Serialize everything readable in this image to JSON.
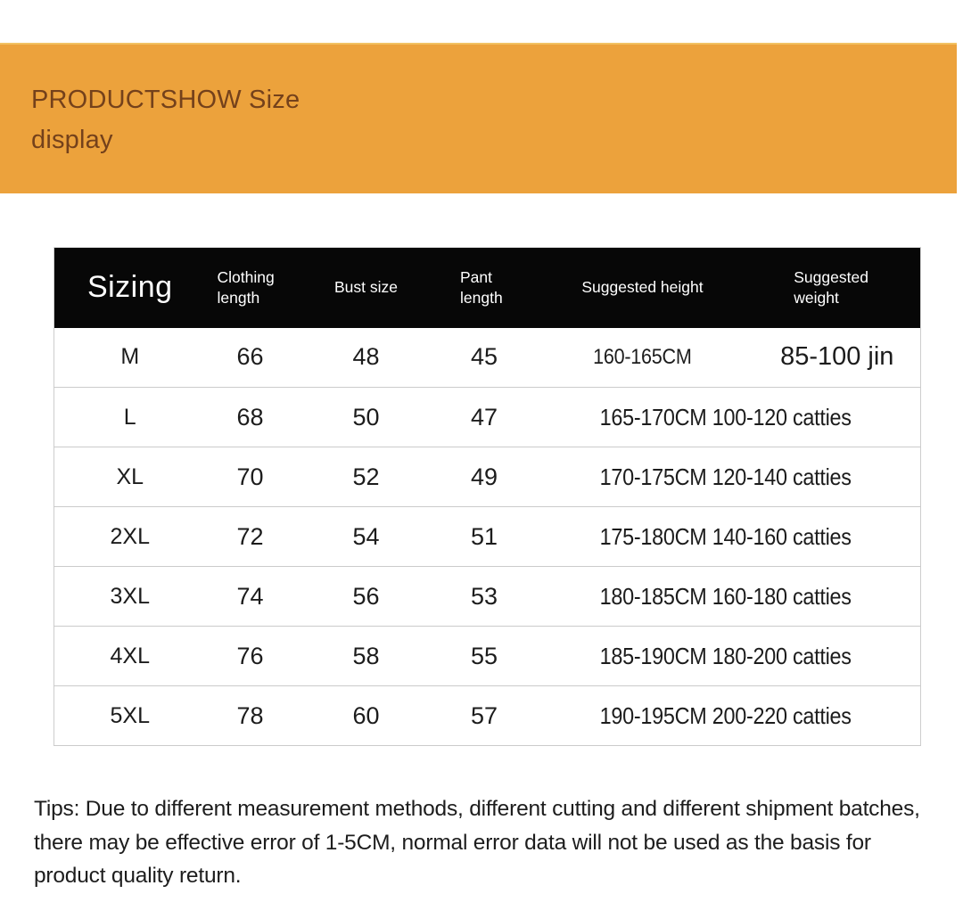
{
  "banner": {
    "title_line1": "PRODUCTSHOW Size",
    "title_line2": "display",
    "colors": {
      "background": "#ECA23C",
      "text": "#74411B"
    }
  },
  "table": {
    "header": {
      "sizing": "Sizing",
      "columns": [
        "Clothing length",
        "Bust size",
        "Pant length",
        "Suggested height",
        "Suggested weight"
      ],
      "colors": {
        "background": "#070707",
        "text": "#FFFFFF"
      }
    },
    "rows": [
      {
        "size": "M",
        "clothing_length": "66",
        "bust_size": "48",
        "pant_length": "45",
        "suggested_height": "160-165CM",
        "suggested_weight": "85-100 jin"
      },
      {
        "size": "L",
        "clothing_length": "68",
        "bust_size": "50",
        "pant_length": "47",
        "height_weight": "165-170CM 100-120 catties"
      },
      {
        "size": "XL",
        "clothing_length": "70",
        "bust_size": "52",
        "pant_length": "49",
        "height_weight": "170-175CM 120-140 catties"
      },
      {
        "size": "2XL",
        "clothing_length": "72",
        "bust_size": "54",
        "pant_length": "51",
        "height_weight": "175-180CM 140-160 catties"
      },
      {
        "size": "3XL",
        "clothing_length": "74",
        "bust_size": "56",
        "pant_length": "53",
        "height_weight": "180-185CM 160-180 catties"
      },
      {
        "size": "4XL",
        "clothing_length": "76",
        "bust_size": "58",
        "pant_length": "55",
        "height_weight": "185-190CM 180-200 catties"
      },
      {
        "size": "5XL",
        "clothing_length": "78",
        "bust_size": "60",
        "pant_length": "57",
        "height_weight": "190-195CM 200-220 catties"
      }
    ]
  },
  "tips": {
    "text": "Tips: Due to different measurement methods, different cutting and different shipment batches, there may be effective error of 1-5CM, normal error data will not be used as the basis for product quality return."
  }
}
